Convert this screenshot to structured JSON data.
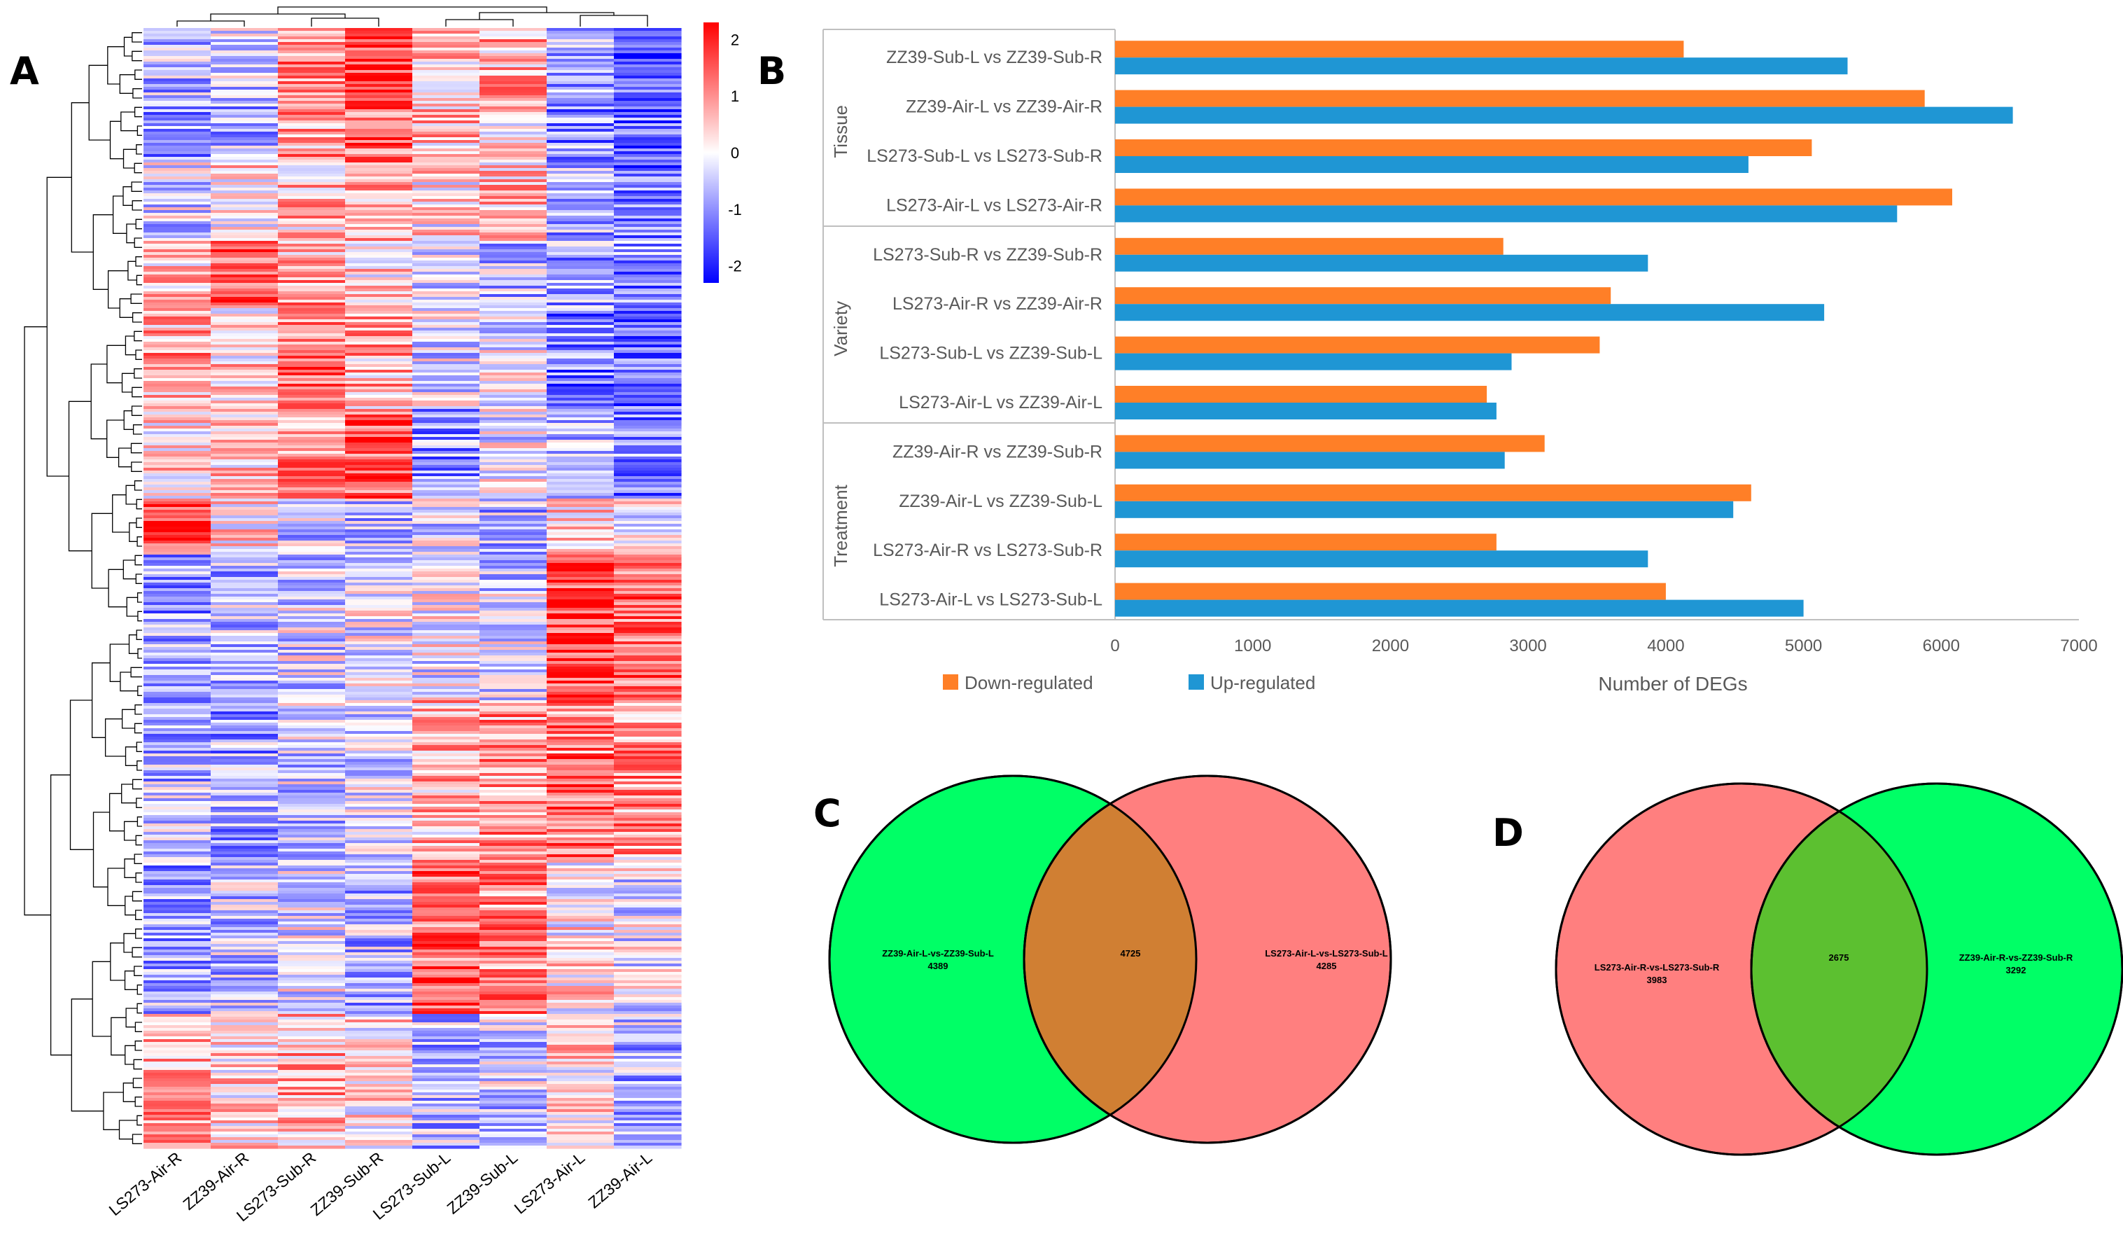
{
  "panel_labels": {
    "a": "A",
    "b": "B",
    "c": "C",
    "d": "D"
  },
  "chart_data": [
    {
      "type": "heatmap",
      "title": "",
      "columns": [
        "LS273-Air-R",
        "ZZ39-Air-R",
        "LS273-Sub-R",
        "ZZ39-Sub-R",
        "LS273-Sub-L",
        "ZZ39-Sub-L",
        "LS273-Air-L",
        "ZZ39-Air-L"
      ],
      "color_scale": {
        "min": -2.3,
        "max": 2.3,
        "ticks": [
          "2",
          "1",
          "0",
          "-1",
          "-2"
        ],
        "low_color": "#0000ff",
        "mid_color": "#ffffff",
        "high_color": "#ff0000"
      },
      "row_dendrogram": true,
      "column_dendrogram": true,
      "colors": {
        "link": "#000000"
      }
    },
    {
      "type": "bar",
      "orientation": "horizontal",
      "xlabel": "Number of DEGs",
      "xlim": [
        0,
        7000
      ],
      "xticks": [
        "0",
        "1000",
        "2000",
        "3000",
        "4000",
        "5000",
        "6000",
        "7000"
      ],
      "groups": [
        {
          "name": "Tissue",
          "categories": [
            "ZZ39-Sub-L vs ZZ39-Sub-R",
            "ZZ39-Air-L vs ZZ39-Air-R",
            "LS273-Sub-L vs LS273-Sub-R",
            "LS273-Air-L vs LS273-Air-R"
          ]
        },
        {
          "name": "Variety",
          "categories": [
            "LS273-Sub-R vs ZZ39-Sub-R",
            "LS273-Air-R vs ZZ39-Air-R",
            "LS273-Sub-L vs ZZ39-Sub-L",
            "LS273-Air-L vs ZZ39-Air-L"
          ]
        },
        {
          "name": "Treatment",
          "categories": [
            "ZZ39-Air-R vs ZZ39-Sub-R",
            "ZZ39-Air-L vs ZZ39-Sub-L",
            "LS273-Air-R vs LS273-Sub-R",
            "LS273-Air-L vs LS273-Sub-L"
          ]
        }
      ],
      "series": [
        {
          "name": "Down-regulated",
          "color": "#ff7f27",
          "values": [
            4130,
            5880,
            5060,
            6080,
            2820,
            3600,
            3520,
            2700,
            3120,
            4620,
            2770,
            4000
          ]
        },
        {
          "name": "Up-regulated",
          "color": "#1f96d4",
          "values": [
            5320,
            6520,
            4600,
            5680,
            3870,
            5150,
            2880,
            2770,
            2830,
            4490,
            3870,
            5000
          ]
        }
      ],
      "legend": "bottom"
    },
    {
      "type": "venn",
      "sets": [
        {
          "name": "ZZ39-Air-L-vs-ZZ39-Sub-L",
          "only": "4389",
          "color": "#00ff66"
        },
        {
          "name": "LS273-Air-L-vs-LS273-Sub-L",
          "only": "4285",
          "color": "#ff7f7f"
        }
      ],
      "intersection": "4725",
      "intersection_color": "#d07f33"
    },
    {
      "type": "venn",
      "sets": [
        {
          "name": "LS273-Air-R-vs-LS273-Sub-R",
          "only": "3983",
          "color": "#ff7f7f"
        },
        {
          "name": "ZZ39-Air-R-vs-ZZ39-Sub-R",
          "only": "3292",
          "color": "#00ff66"
        }
      ],
      "intersection": "2675",
      "intersection_color": "#5cc030"
    }
  ]
}
